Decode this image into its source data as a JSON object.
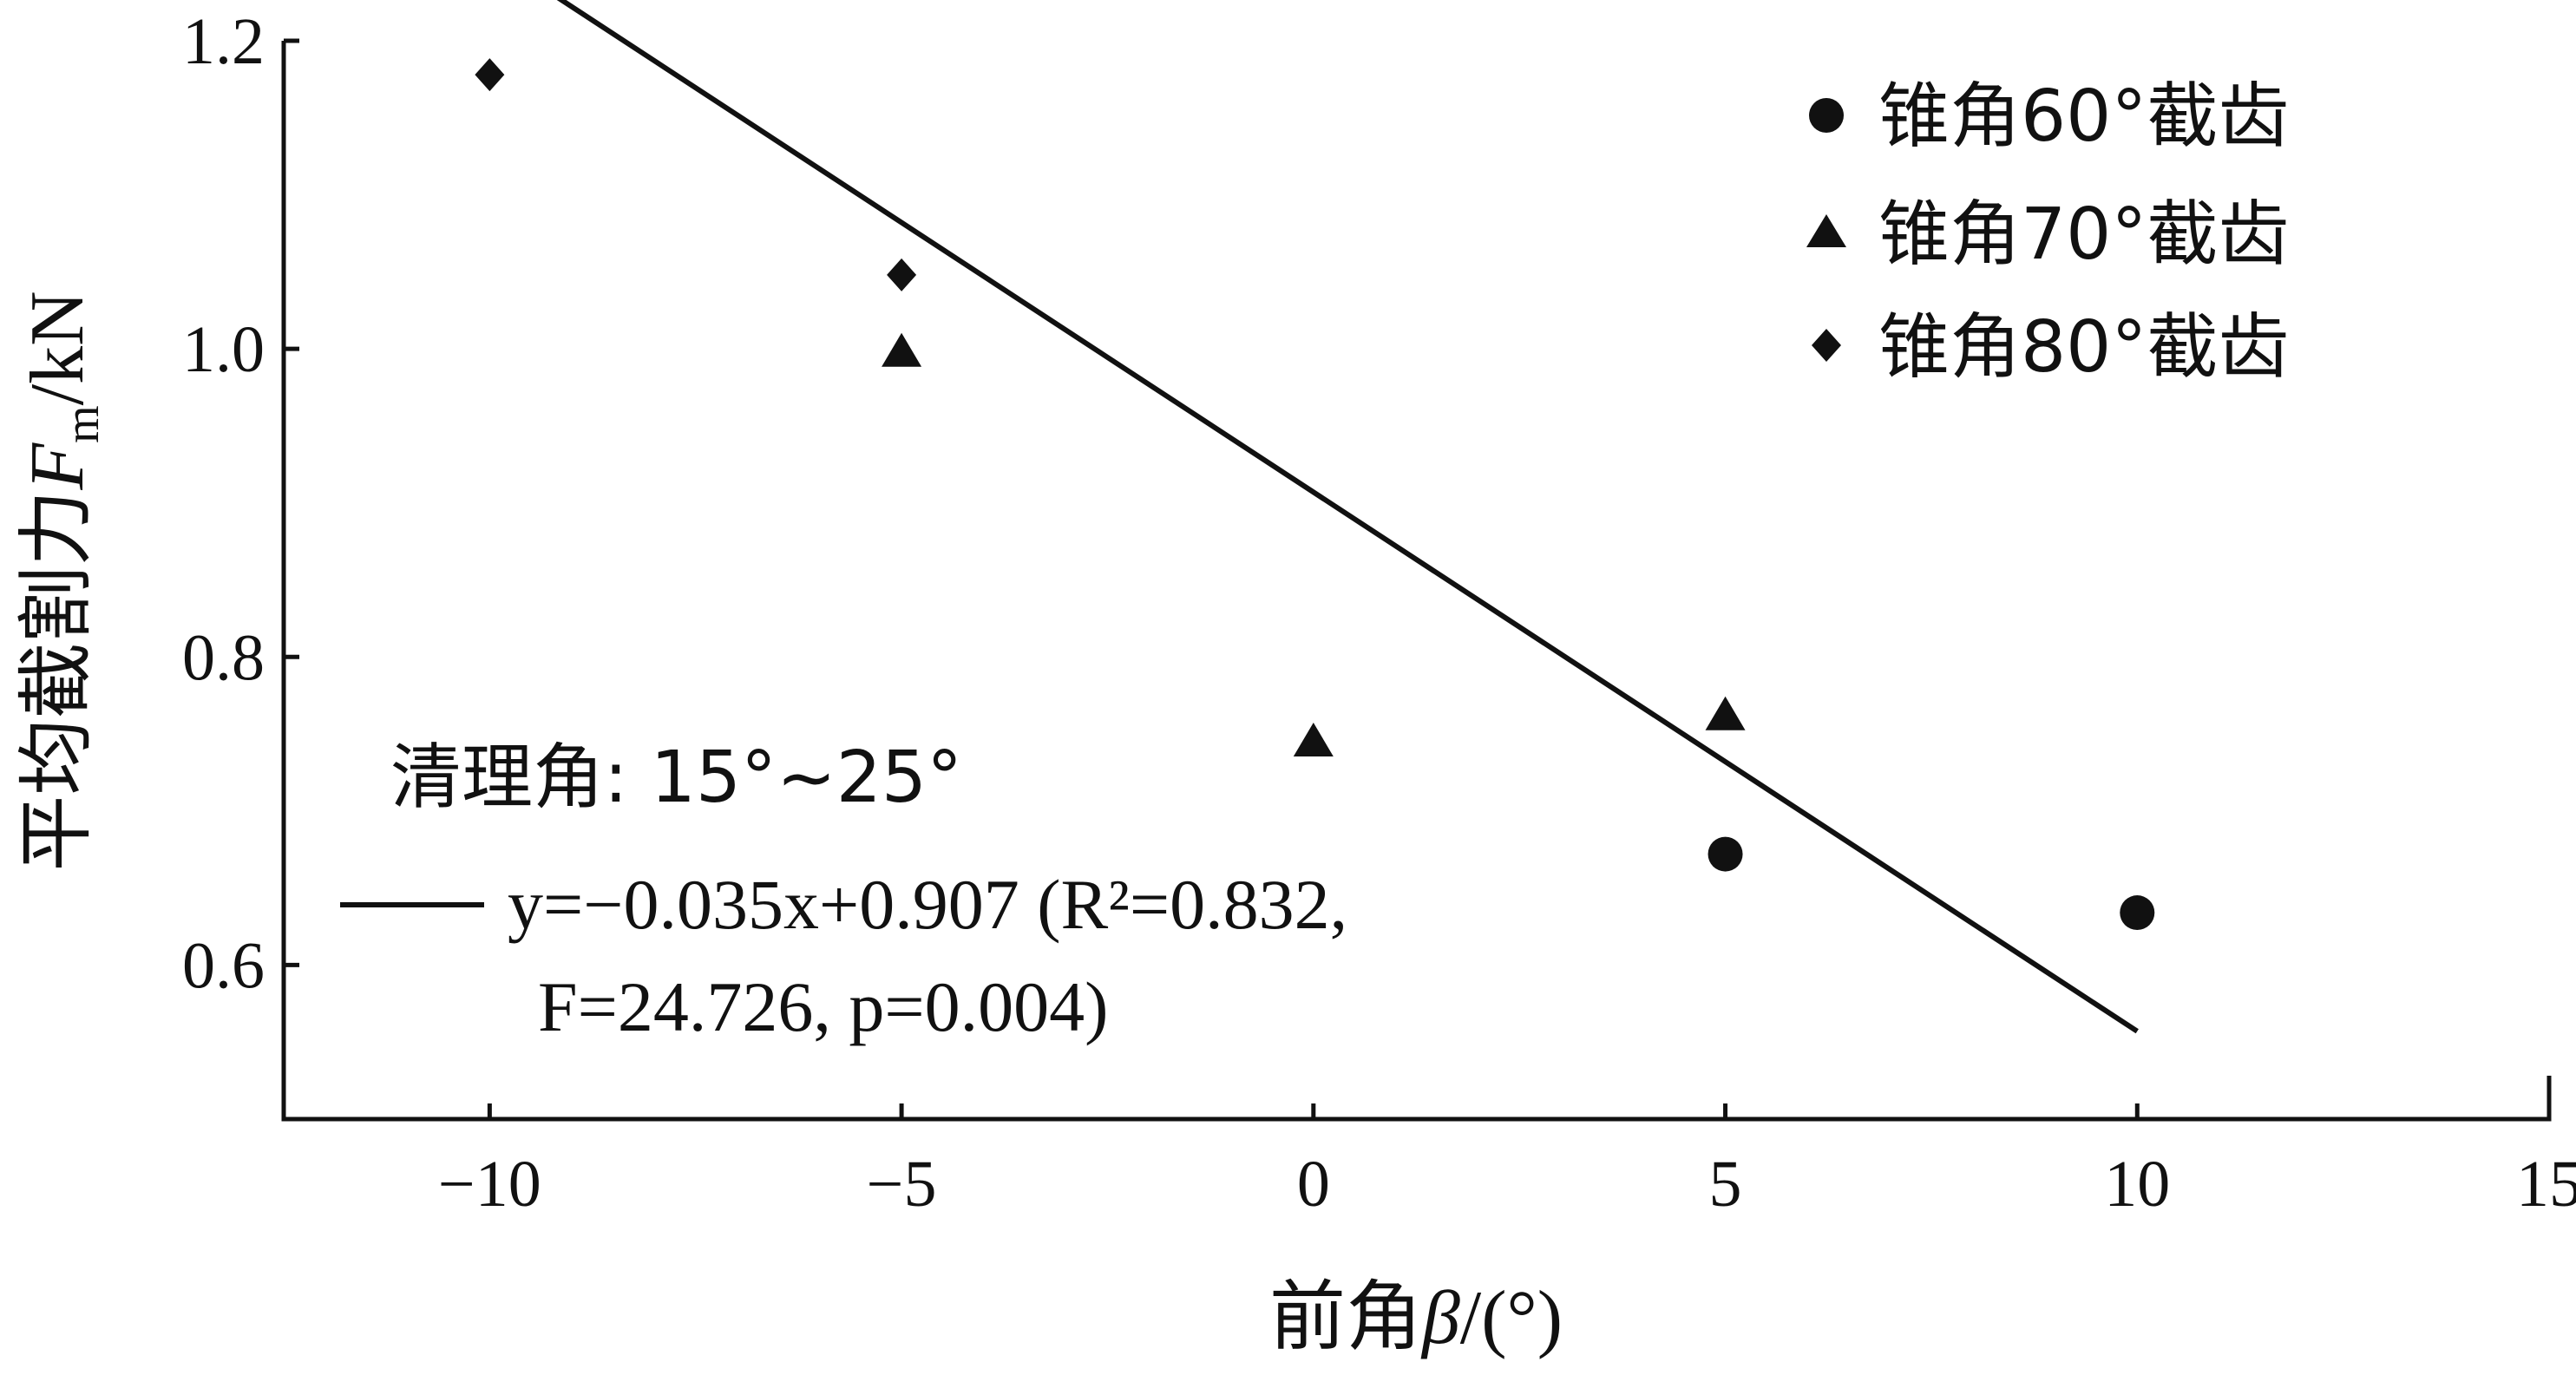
{
  "chart_data": {
    "type": "scatter",
    "xlabel": "前角β/(°)",
    "ylabel": "平均截割力Fm/kN",
    "xlim": [
      -12.5,
      15
    ],
    "ylim": [
      0.5,
      1.2
    ],
    "xticks": [
      -10,
      -5,
      0,
      5,
      10,
      15
    ],
    "yticks": [
      0.6,
      0.8,
      1.0,
      1.2
    ],
    "xtick_labels": [
      "−10",
      "−5",
      "0",
      "5",
      "10",
      "15"
    ],
    "ytick_labels": [
      "0.6",
      "0.8",
      "1.0",
      "1.2"
    ],
    "series": [
      {
        "name": "锥角60°截齿",
        "marker": "circle",
        "x": [
          5,
          10
        ],
        "y": [
          0.672,
          0.634
        ]
      },
      {
        "name": "锥角70°截齿",
        "marker": "triangle",
        "x": [
          -5,
          0,
          5
        ],
        "y": [
          0.998,
          0.745,
          0.762
        ]
      },
      {
        "name": "锥角80°截齿",
        "marker": "diamond",
        "x": [
          -10,
          -5
        ],
        "y": [
          1.178,
          1.048
        ]
      }
    ],
    "fit": {
      "slope": -0.035,
      "intercept": 0.907,
      "x_range": [
        -10,
        10
      ],
      "line1": "y=−0.035x+0.907 (R²=0.832,",
      "line2": "F=24.726, p=0.004)"
    },
    "annotation": "清理角: 15°~25°",
    "legend_position": "top-right",
    "grid": false
  }
}
